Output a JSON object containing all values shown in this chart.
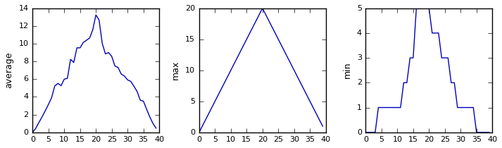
{
  "avg_data": [
    0.0,
    0.45,
    1.117,
    1.75,
    2.433,
    3.15,
    3.9,
    5.233,
    5.517,
    5.267,
    6.0,
    6.1,
    8.233,
    7.883,
    9.533,
    9.533,
    10.133,
    10.383,
    10.633,
    11.567,
    13.25,
    12.667,
    10.033,
    8.85,
    9.0,
    8.567,
    7.483,
    7.317,
    6.567,
    6.35,
    5.917,
    5.75,
    5.2,
    4.617,
    3.633,
    3.517,
    2.617,
    1.75,
    1.017,
    0.467
  ],
  "max_data": [
    0,
    1,
    2,
    3,
    4,
    5,
    6,
    7,
    8,
    9,
    10,
    11,
    12,
    13,
    14,
    15,
    16,
    17,
    18,
    19,
    20,
    19,
    18,
    17,
    16,
    15,
    14,
    13,
    12,
    11,
    10,
    9,
    8,
    7,
    6,
    5,
    4,
    3,
    2,
    1
  ],
  "min_data": [
    0,
    0,
    0,
    0,
    1,
    1,
    1,
    1,
    1,
    1,
    1,
    1,
    2,
    2,
    3,
    3,
    5,
    5,
    5,
    5,
    5,
    4,
    4,
    4,
    3,
    3,
    3,
    2,
    2,
    1,
    1,
    1,
    1,
    1,
    1,
    0,
    0,
    0,
    0,
    0
  ],
  "line_color": "#0000bb",
  "bg_color": "#ffffff",
  "ylabel_avg": "average",
  "ylabel_max": "max",
  "ylabel_min": "min",
  "xlim": [
    0,
    40
  ],
  "ylim_avg": [
    0,
    14
  ],
  "ylim_max": [
    0,
    20
  ],
  "ylim_min": [
    0,
    5
  ],
  "yticks_avg": [
    0,
    2,
    4,
    6,
    8,
    10,
    12,
    14
  ],
  "yticks_max": [
    0,
    5,
    10,
    15,
    20
  ],
  "yticks_min": [
    0,
    1,
    2,
    3,
    4,
    5
  ],
  "xticks": [
    0,
    5,
    10,
    15,
    20,
    25,
    30,
    35,
    40
  ],
  "tick_fontsize": 8,
  "label_fontsize": 9
}
